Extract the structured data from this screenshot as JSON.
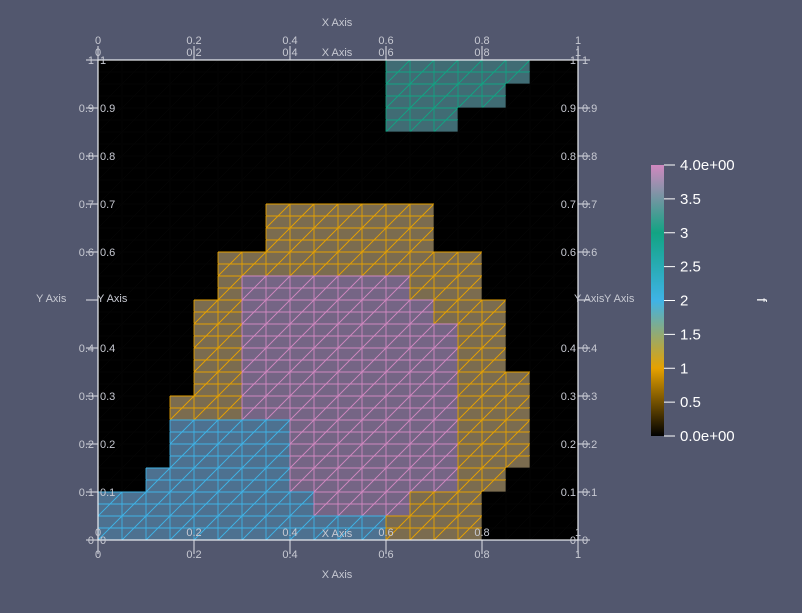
{
  "chart_data": {
    "type": "heatmap",
    "title": "",
    "xlabel": "X Axis",
    "ylabel": "Y Axis",
    "xlim": [
      0,
      1
    ],
    "ylim": [
      0,
      1
    ],
    "x_ticks": [
      "0",
      "0.2",
      "0.4",
      "0.6",
      "0.8",
      "1"
    ],
    "y_ticks": [
      "0",
      "0.1",
      "0.2",
      "0.3",
      "0.4",
      "0.5",
      "0.6",
      "0.7",
      "0.8",
      "0.9",
      "1"
    ],
    "grid_size": 20,
    "value_range": [
      0,
      4
    ],
    "colorbar": {
      "title": "f",
      "labels": [
        "4.0e+00",
        "3.5",
        "3",
        "2.5",
        "2",
        "1.5",
        "1",
        "0.5",
        "0.0e+00"
      ],
      "colors": [
        "#000000",
        "#e6a100",
        "#3fb3e6",
        "#12a383",
        "#d088c0"
      ]
    },
    "cells": [
      "00000000000033333300",
      "00000000000033333300",
      "00000000000033333000",
      "00000000000033333000",
      "00000000000033300000",
      "00000000000033300000",
      "00000000000000000000",
      "00000000000000000000",
      "00000000000000000000",
      "00000000000000000000",
      "00000000000000000000",
      "00000000000000000000",
      "00000001111111000000",
      "00000001111111000000",
      "00000001111111000000",
      "00000001111111000000",
      "00000111111111110000",
      "00000111111111110000",
      "00000144444441110000",
      "00000144444441110000",
      "00001144444444111000",
      "00001144444444111000",
      "00001144444444411000",
      "00001144444444411000",
      "00001144444444411000",
      "00001144444444411000",
      "00001144444444411100",
      "00001144444444411100",
      "00011144444444411100",
      "00011144444444411100",
      "00022222444444411100",
      "00022222444444411100",
      "00022222444444411100",
      "00022222444444411100",
      "00222222444444411000",
      "00222222444444411000",
      "22222222244441110000",
      "22222222244441110000",
      "22222222222211110000",
      "22222222222211110000"
    ]
  }
}
